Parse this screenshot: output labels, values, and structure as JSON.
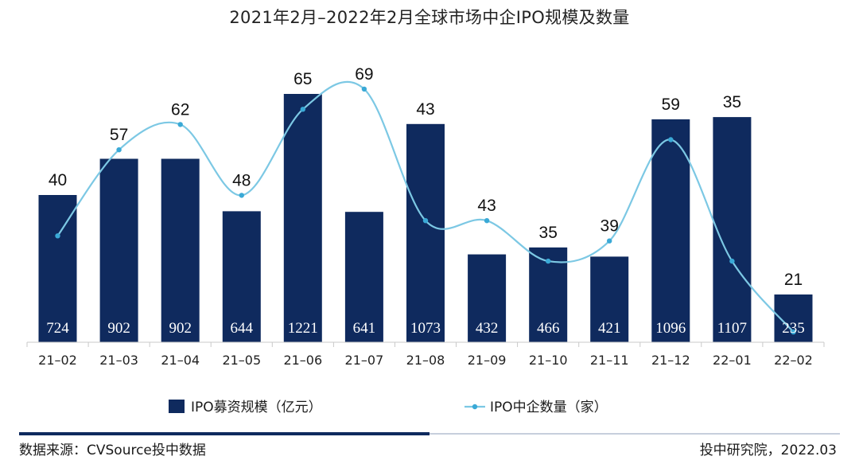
{
  "chart_data": {
    "type": "bar",
    "title": "2021年2月–2022年2月全球市场中企IPO规模及数量",
    "categories": [
      "21–02",
      "21–03",
      "21–04",
      "21–05",
      "21–06",
      "21–07",
      "21–08",
      "21–09",
      "21–10",
      "21–11",
      "21–12",
      "22–01",
      "22–02"
    ],
    "series": [
      {
        "name": "IPO募资规模（亿元）",
        "type": "bar",
        "values": [
          724,
          902,
          902,
          644,
          1221,
          641,
          1073,
          432,
          466,
          421,
          1096,
          1107,
          235
        ]
      },
      {
        "name": "IPO中企数量（家）",
        "type": "line",
        "values": [
          40,
          57,
          62,
          48,
          65,
          69,
          43,
          43,
          35,
          39,
          59,
          35,
          21
        ]
      }
    ],
    "colors": {
      "bar": "#0f2a5e",
      "line": "#7cc8e4",
      "marker": "#3aa9d6"
    },
    "xlabel": "",
    "ylabel": ""
  },
  "footer": {
    "source": "数据来源：CVSource投中数据",
    "credit": "投中研究院，2022.03"
  }
}
